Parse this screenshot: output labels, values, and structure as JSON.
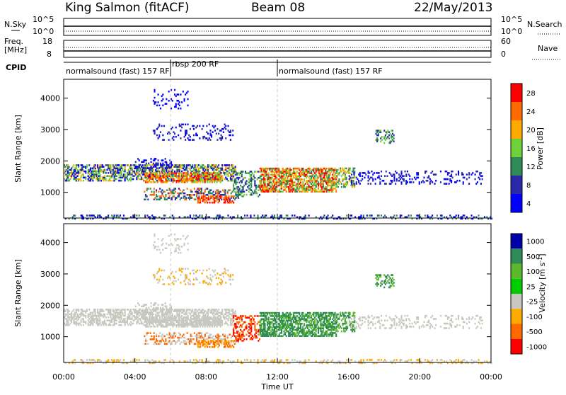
{
  "header": {
    "site": "King Salmon (fitACF)",
    "beam": "Beam 08",
    "date": "22/May/2013"
  },
  "panels": {
    "nsky": {
      "left_label": "N.Sky",
      "right_label": "N.Search",
      "ticks_left": [
        "10^5",
        "10^0"
      ],
      "ticks_right": [
        "10^5",
        "10^0"
      ]
    },
    "freq": {
      "left_label_1": "Freq.",
      "left_label_2": "[MHz]",
      "right_label": "Nave",
      "ticks_left": [
        "18",
        "8"
      ],
      "ticks_right": [
        "60",
        "0"
      ]
    },
    "cpid": {
      "label": "CPID",
      "segments": [
        {
          "text": "normalsound (fast) 157 RF",
          "start_hour": 0
        },
        {
          "text": "rbsp 200 RF",
          "start_hour": 6
        },
        {
          "text": "normalsound (fast) 157 RF",
          "start_hour": 12
        }
      ]
    }
  },
  "chart_data": [
    {
      "type": "heatmap",
      "name": "power",
      "ylabel": "Slant Range [km]",
      "yticks": [
        1000,
        2000,
        3000,
        4000
      ],
      "ylim": [
        180,
        4600
      ],
      "colorbar": {
        "label": "Power [dB]",
        "ticks": [
          "28",
          "24",
          "20",
          "16",
          "12",
          "8",
          "4"
        ],
        "colors": [
          "#ff0000",
          "#ff6a00",
          "#ffaa00",
          "#6fd13a",
          "#2e8b57",
          "#2a2aa8",
          "#0000ff"
        ]
      }
    },
    {
      "type": "heatmap",
      "name": "velocity",
      "ylabel": "Slant Range [km]",
      "yticks": [
        1000,
        2000,
        3000,
        4000
      ],
      "ylim": [
        180,
        4600
      ],
      "colorbar": {
        "label": "Velocity [m s",
        "label_sup": "-1",
        "label_end": "]",
        "ticks": [
          "1000",
          "500",
          "100",
          "25",
          "-25",
          "-100",
          "-500",
          "-1000"
        ],
        "colors": [
          "#0000aa",
          "#2e8b57",
          "#5ab82a",
          "#00cc00",
          "#c8c8c0",
          "#ffaa00",
          "#ff6a00",
          "#ff0000"
        ]
      },
      "ground_scatter_color": "#c8c8c0"
    }
  ],
  "xaxis": {
    "label": "Time UT",
    "ticks": [
      "00:00",
      "04:00",
      "08:00",
      "12:00",
      "16:00",
      "20:00",
      "00:00"
    ],
    "xlim_hours": [
      0,
      24
    ]
  }
}
